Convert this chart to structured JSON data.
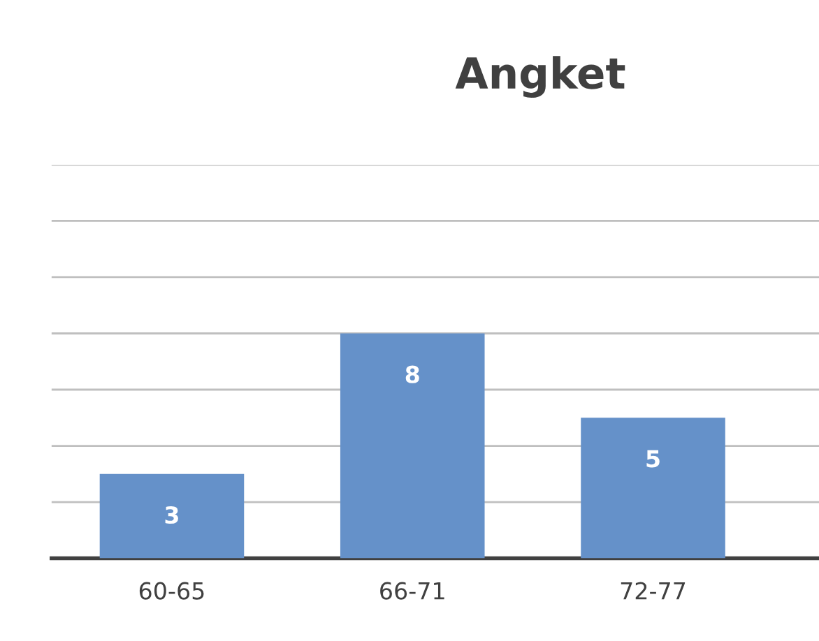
{
  "chart_data": {
    "type": "bar",
    "title": "Angket",
    "categories": [
      "60-65",
      "66-71",
      "72-77"
    ],
    "values": [
      3,
      8,
      5
    ],
    "color": "#6591c9",
    "ylim": [
      0,
      14
    ],
    "yticks": [
      {
        "value": 2,
        "label": null
      },
      {
        "value": 4,
        "label": null
      },
      {
        "value": 6,
        "label": null
      },
      {
        "value": 8,
        "label": null
      },
      {
        "value": 10,
        "label": null
      },
      {
        "value": 12,
        "label": null
      },
      {
        "value": 14,
        "label": null
      }
    ],
    "grid": "y",
    "data_labels": true,
    "tick_labels": "x"
  }
}
